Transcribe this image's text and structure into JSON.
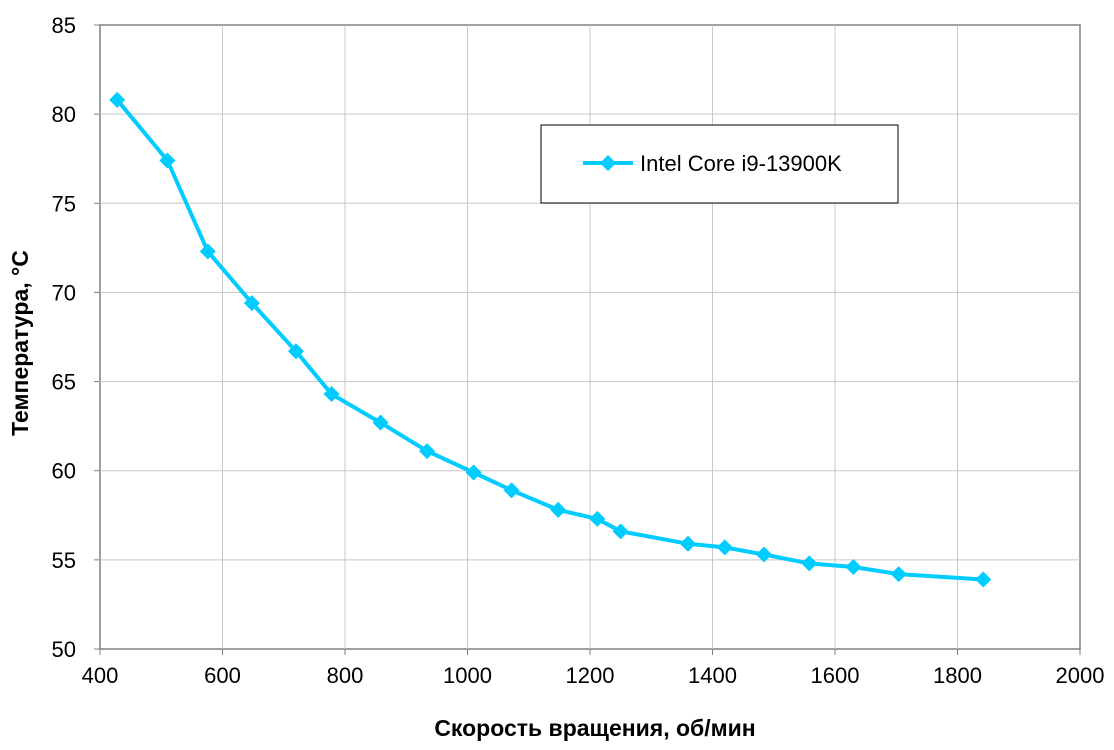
{
  "chart_data": {
    "type": "line",
    "title": "",
    "xlabel": "Скорость вращения, об/мин",
    "ylabel": "Температура, °С",
    "xlim": [
      400,
      2000
    ],
    "ylim": [
      50,
      85
    ],
    "x_ticks": [
      400,
      600,
      800,
      1000,
      1200,
      1400,
      1600,
      1800,
      2000
    ],
    "y_ticks": [
      50,
      55,
      60,
      65,
      70,
      75,
      80,
      85
    ],
    "grid": true,
    "legend_position": "top-right",
    "series": [
      {
        "name": "Intel Core i9-13900K",
        "color": "#00CCFF",
        "marker": "diamond",
        "x": [
          428,
          510,
          576,
          648,
          720,
          778,
          858,
          934,
          1010,
          1072,
          1148,
          1212,
          1250,
          1360,
          1420,
          1484,
          1558,
          1630,
          1704,
          1842
        ],
        "y": [
          80.8,
          77.4,
          72.3,
          69.4,
          66.7,
          64.3,
          62.7,
          61.1,
          59.9,
          58.9,
          57.8,
          57.3,
          56.6,
          55.9,
          55.7,
          55.3,
          54.8,
          54.6,
          54.2,
          53.9
        ]
      }
    ]
  }
}
